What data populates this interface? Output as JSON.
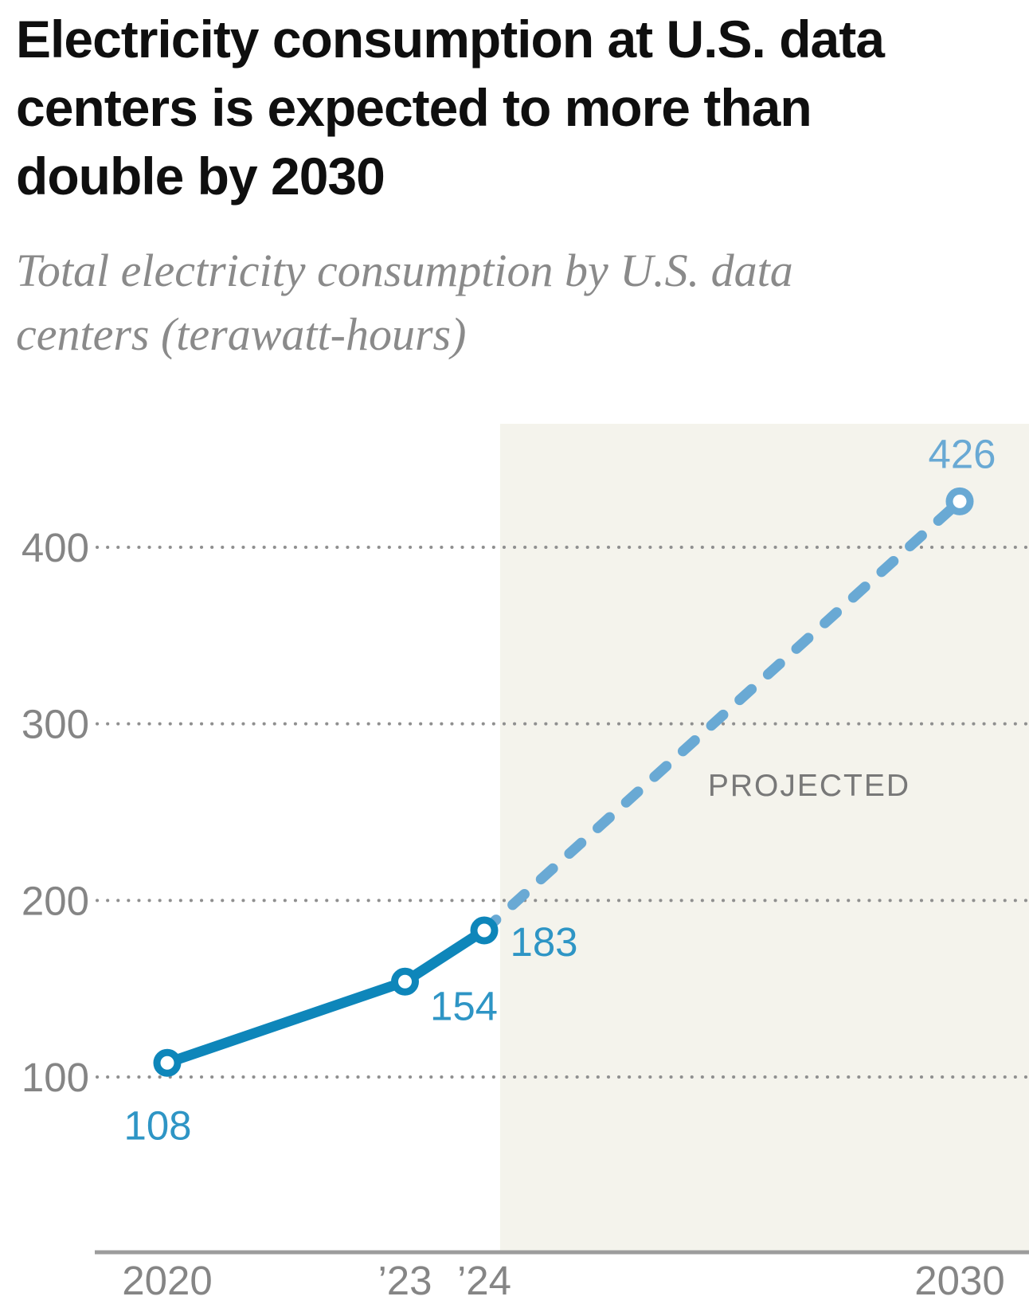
{
  "chart_data": {
    "type": "line",
    "title": "Electricity consumption at U.S. data centers is expected to more than double by 2030",
    "subtitle": "Total electricity consumption by U.S. data centers (terawatt-hours)",
    "unit": "terawatt-hours",
    "xlim": [
      2019.1,
      2030.9
    ],
    "ylim": [
      40,
      480
    ],
    "grid": "horizontal-dotted",
    "legend": "none",
    "y_ticks": [
      {
        "v": 100,
        "label": "100"
      },
      {
        "v": 200,
        "label": "200"
      },
      {
        "v": 300,
        "label": "300"
      },
      {
        "v": 400,
        "label": "400"
      }
    ],
    "x_ticks": [
      {
        "x": 2020,
        "label": "2020"
      },
      {
        "x": 2023,
        "label": "’23"
      },
      {
        "x": 2024,
        "label": "’24"
      },
      {
        "x": 2030,
        "label": "2030"
      }
    ],
    "points": [
      {
        "x": 2020,
        "value": 108,
        "label": "108",
        "series": "actual",
        "label_offset": [
          -12,
          96
        ]
      },
      {
        "x": 2023,
        "value": 154,
        "label": "154",
        "series": "actual",
        "label_offset": [
          74,
          48
        ]
      },
      {
        "x": 2024,
        "value": 183,
        "label": "183",
        "series": "actual",
        "label_offset": [
          75,
          32
        ]
      },
      {
        "x": 2030,
        "value": 426,
        "label": "426",
        "series": "projected",
        "label_offset": [
          3,
          -42
        ]
      }
    ],
    "series": [
      {
        "name": "actual",
        "style": "solid",
        "color": "#0e86ba",
        "points": [
          [
            2020,
            108
          ],
          [
            2023,
            154
          ],
          [
            2024,
            183
          ]
        ]
      },
      {
        "name": "projected",
        "style": "dashed",
        "color": "#69a9d4",
        "points": [
          [
            2024,
            183
          ],
          [
            2030,
            426
          ]
        ]
      }
    ],
    "label_colors": {
      "actual": "#2e95c5",
      "projected": "#69a9d4"
    },
    "annotation": {
      "text": "PROJECTED",
      "x": 2028.1,
      "value": 266,
      "color": "#787878"
    },
    "projected_region": {
      "x_start": 2024.2,
      "color": "#f4f3ec"
    }
  }
}
